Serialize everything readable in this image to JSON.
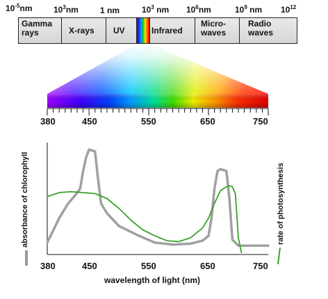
{
  "em_scale": {
    "wavelength_labels": [
      {
        "base": "10",
        "exp": "-5",
        "unit": "nm"
      },
      {
        "base": "10",
        "exp": "3",
        "unit": "nm"
      },
      {
        "base": "1",
        "exp": "",
        "unit": " nm"
      },
      {
        "base": "10",
        "exp": "3",
        "unit": " nm"
      },
      {
        "base": "10",
        "exp": "6",
        "unit": "nm"
      },
      {
        "base": "10",
        "exp": "9",
        "unit": " nm"
      },
      {
        "base": "10",
        "exp": "12",
        "unit": ""
      }
    ],
    "bands": [
      "Gamma\nrays",
      "X-rays",
      "UV",
      "Infrared",
      "Micro-\nwaves",
      "Radio\nwaves"
    ]
  },
  "visible_spectrum": {
    "ticks": [
      "380",
      "450",
      "550",
      "650",
      "750"
    ]
  },
  "chart_data": {
    "type": "line",
    "x_tick_labels": [
      "380",
      "450",
      "550",
      "650",
      "750"
    ],
    "xlabel": "wavelength of light (nm)",
    "left_label": "absorbance of chlorophyll",
    "right_label": "rate of photosynthesis",
    "xlim": [
      380,
      750
    ],
    "series": [
      {
        "name": "absorbance of chlorophyll",
        "color": "#a0a0a0",
        "x": [
          380,
          400,
          415,
          425,
          435,
          440,
          445,
          450,
          455,
          460,
          465,
          470,
          480,
          500,
          530,
          560,
          590,
          620,
          640,
          650,
          655,
          660,
          665,
          670,
          675,
          680,
          685,
          690,
          700,
          720,
          750
        ],
        "y": [
          0.05,
          0.3,
          0.45,
          0.52,
          0.6,
          0.78,
          0.92,
          1.0,
          0.99,
          0.98,
          0.7,
          0.45,
          0.35,
          0.22,
          0.13,
          0.05,
          0.03,
          0.04,
          0.07,
          0.12,
          0.3,
          0.6,
          0.78,
          0.8,
          0.79,
          0.78,
          0.5,
          0.08,
          0.02,
          0.02,
          0.02
        ]
      },
      {
        "name": "rate of photosynthesis",
        "color": "#3aa02a",
        "x": [
          380,
          400,
          420,
          440,
          460,
          480,
          500,
          520,
          540,
          560,
          580,
          600,
          620,
          640,
          650,
          660,
          670,
          680,
          685,
          690,
          695,
          700,
          705
        ],
        "y": [
          0.52,
          0.56,
          0.57,
          0.56,
          0.55,
          0.5,
          0.4,
          0.28,
          0.18,
          0.12,
          0.07,
          0.06,
          0.1,
          0.2,
          0.3,
          0.45,
          0.58,
          0.62,
          0.63,
          0.62,
          0.55,
          0.1,
          -0.05
        ]
      }
    ]
  }
}
